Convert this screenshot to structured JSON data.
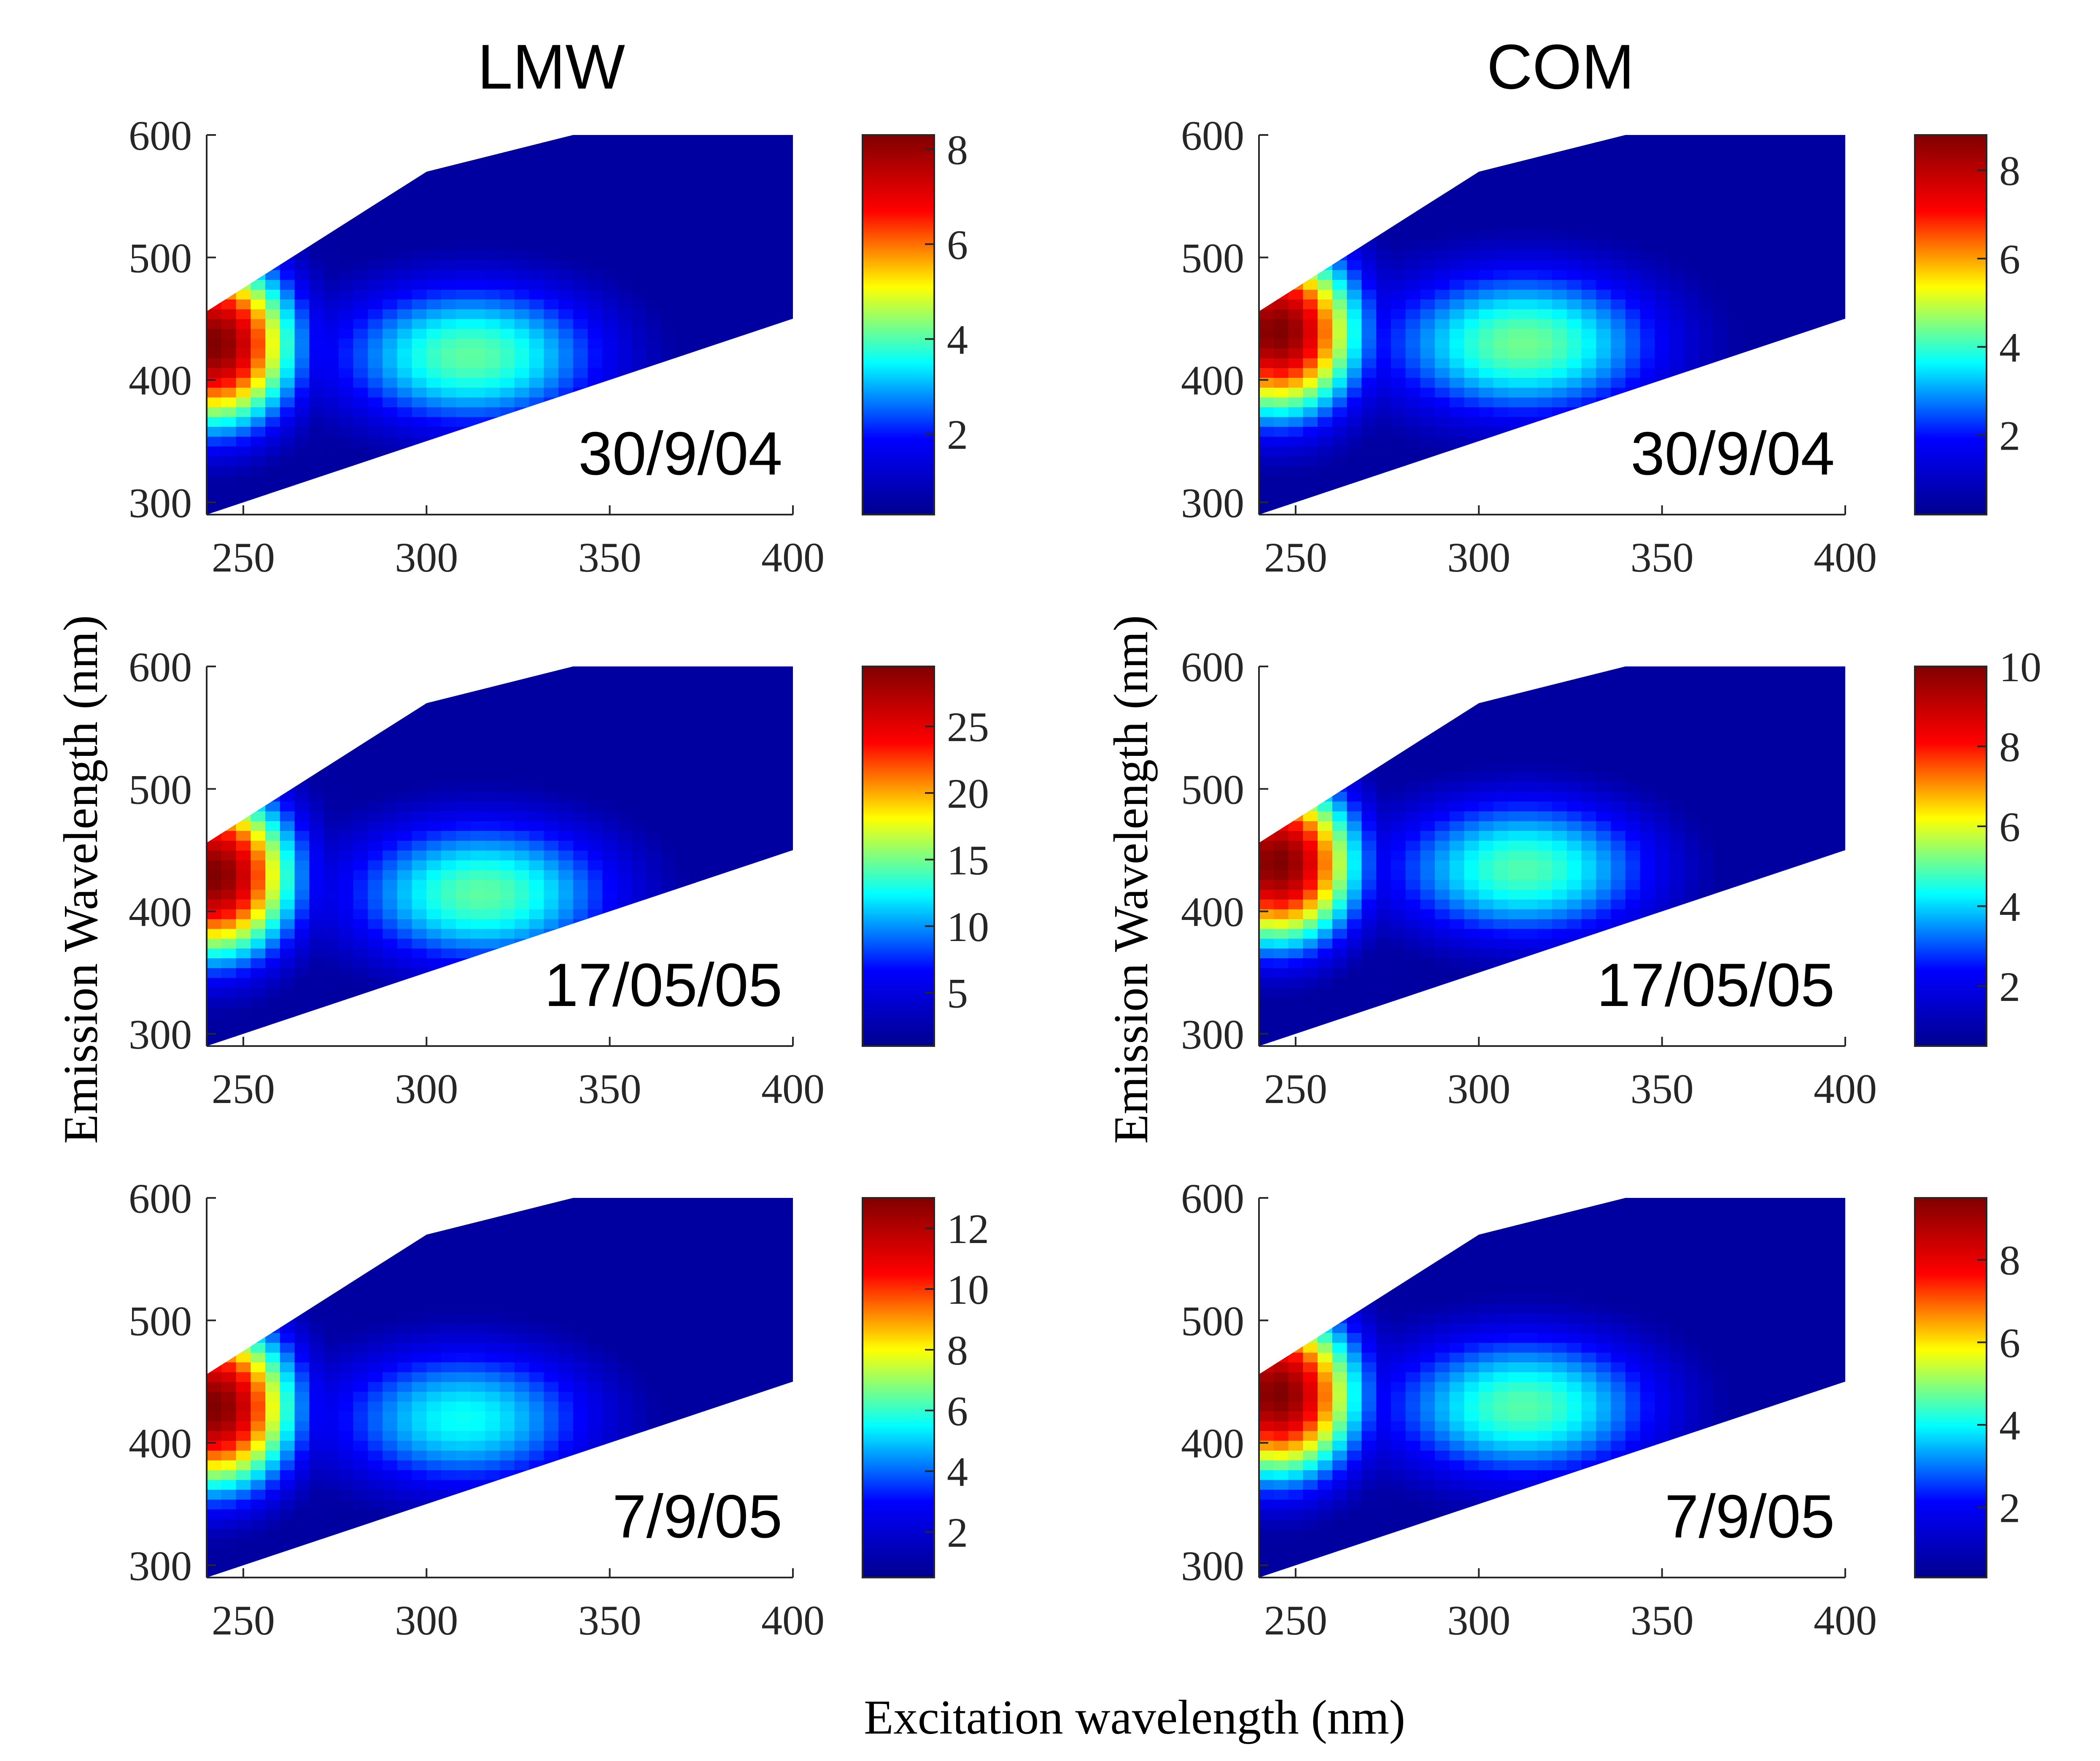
{
  "figure": {
    "column_titles": [
      "LMW",
      "COM"
    ],
    "xlabel": "Excitation wavelength (nm)",
    "ylabel": "Emission Wavelength (nm)",
    "colormap": "jet",
    "colormap_stops": [
      "#00008f",
      "#0000ff",
      "#00ffff",
      "#ffff00",
      "#ff0000",
      "#800000"
    ]
  },
  "chart_data": [
    {
      "type": "heatmap",
      "column": "LMW",
      "row": 1,
      "annotation": "30/9/04",
      "xlim": [
        240,
        400
      ],
      "ylim": [
        290,
        600
      ],
      "xticks": [
        250,
        300,
        350,
        400
      ],
      "yticks": [
        300,
        400,
        500,
        600
      ],
      "clim": [
        0.3,
        8.3
      ],
      "cticks": [
        2,
        4,
        6,
        8
      ],
      "peaks": [
        {
          "ex": 242,
          "em": 430,
          "value": 8.3
        },
        {
          "ex": 312,
          "em": 420,
          "value": 4.1
        }
      ]
    },
    {
      "type": "heatmap",
      "column": "COM",
      "row": 1,
      "annotation": "30/9/04",
      "xlim": [
        240,
        400
      ],
      "ylim": [
        290,
        600
      ],
      "xticks": [
        250,
        300,
        350,
        400
      ],
      "yticks": [
        300,
        400,
        500,
        600
      ],
      "clim": [
        0.2,
        8.8
      ],
      "cticks": [
        2,
        4,
        6,
        8
      ],
      "peaks": [
        {
          "ex": 245,
          "em": 440,
          "value": 8.8
        },
        {
          "ex": 312,
          "em": 430,
          "value": 4.4
        }
      ]
    },
    {
      "type": "heatmap",
      "column": "LMW",
      "row": 2,
      "annotation": "17/05/05",
      "xlim": [
        240,
        400
      ],
      "ylim": [
        290,
        600
      ],
      "xticks": [
        250,
        300,
        350,
        400
      ],
      "yticks": [
        300,
        400,
        500,
        600
      ],
      "clim": [
        1,
        29.5
      ],
      "cticks": [
        5,
        10,
        15,
        20,
        25
      ],
      "peaks": [
        {
          "ex": 242,
          "em": 430,
          "value": 29.5
        },
        {
          "ex": 315,
          "em": 415,
          "value": 14.5
        }
      ]
    },
    {
      "type": "heatmap",
      "column": "COM",
      "row": 2,
      "annotation": "17/05/05",
      "xlim": [
        240,
        400
      ],
      "ylim": [
        290,
        600
      ],
      "xticks": [
        250,
        300,
        350,
        400
      ],
      "yticks": [
        300,
        400,
        500,
        600
      ],
      "clim": [
        0.5,
        10
      ],
      "cticks": [
        2,
        4,
        6,
        8,
        10
      ],
      "peaks": [
        {
          "ex": 245,
          "em": 440,
          "value": 10
        },
        {
          "ex": 312,
          "em": 435,
          "value": 4.9
        }
      ]
    },
    {
      "type": "heatmap",
      "column": "LMW",
      "row": 3,
      "annotation": "7/9/05",
      "xlim": [
        240,
        400
      ],
      "ylim": [
        290,
        600
      ],
      "xticks": [
        250,
        300,
        350,
        400
      ],
      "yticks": [
        300,
        400,
        500,
        600
      ],
      "clim": [
        0.5,
        13
      ],
      "cticks": [
        2,
        4,
        6,
        8,
        10,
        12
      ],
      "peaks": [
        {
          "ex": 242,
          "em": 430,
          "value": 13
        },
        {
          "ex": 310,
          "em": 420,
          "value": 5.6
        }
      ]
    },
    {
      "type": "heatmap",
      "column": "COM",
      "row": 3,
      "annotation": "7/9/05",
      "xlim": [
        240,
        400
      ],
      "ylim": [
        290,
        600
      ],
      "xticks": [
        250,
        300,
        350,
        400
      ],
      "yticks": [
        300,
        400,
        500,
        600
      ],
      "clim": [
        0.3,
        9.5
      ],
      "cticks": [
        2,
        4,
        6,
        8
      ],
      "peaks": [
        {
          "ex": 245,
          "em": 440,
          "value": 9.5
        },
        {
          "ex": 312,
          "em": 430,
          "value": 4.6
        }
      ]
    }
  ]
}
